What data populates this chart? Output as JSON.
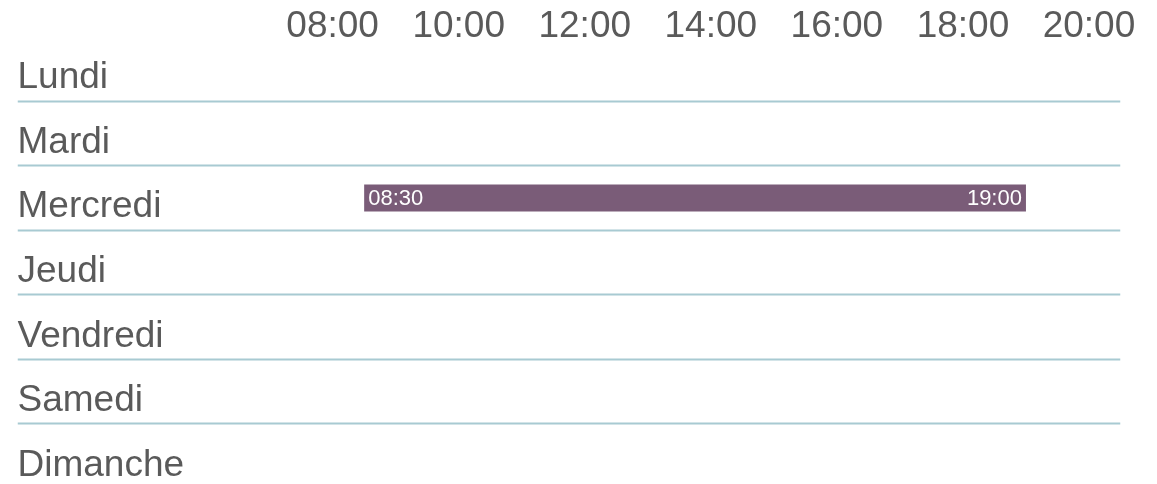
{
  "chart_data": {
    "type": "bar",
    "orientation": "horizontal",
    "categories": [
      "Lundi",
      "Mardi",
      "Mercredi",
      "Jeudi",
      "Vendredi",
      "Samedi",
      "Dimanche"
    ],
    "base": [
      null,
      null,
      8.5,
      null,
      null,
      null,
      null
    ],
    "values": [
      null,
      null,
      10.5,
      null,
      null,
      null,
      null
    ],
    "color": "#7a5c78",
    "xlim": [
      3,
      20.5
    ],
    "xticks": [
      {
        "value": 8,
        "label": "08:00"
      },
      {
        "value": 10,
        "label": "10:00"
      },
      {
        "value": 12,
        "label": "12:00"
      },
      {
        "value": 14,
        "label": "14:00"
      },
      {
        "value": 16,
        "label": "16:00"
      },
      {
        "value": 18,
        "label": "18:00"
      },
      {
        "value": 20,
        "label": "20:00"
      }
    ],
    "grid": "y",
    "annotations": [
      {
        "text": "08:30",
        "x": 8.5,
        "y": "Mercredi"
      },
      {
        "text": "19:00",
        "x": 19,
        "y": "Mercredi"
      }
    ]
  }
}
